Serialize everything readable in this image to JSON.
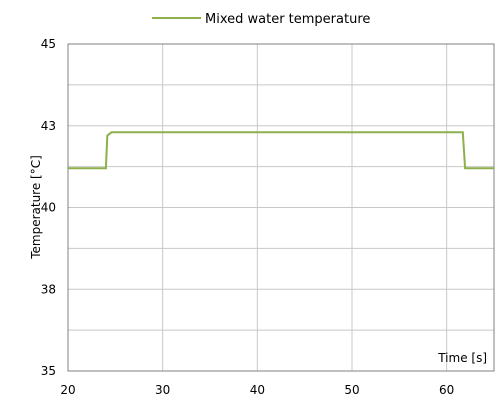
{
  "chart_data": {
    "type": "line",
    "title": "",
    "xlabel": "Time [s]",
    "ylabel": "Temperature [°C]",
    "xlim": [
      20,
      65
    ],
    "ylim": [
      35,
      45
    ],
    "x_ticks": [
      20,
      30,
      40,
      50,
      60
    ],
    "y_ticks": [
      35,
      38,
      40,
      43,
      45
    ],
    "y_tick_values": [
      35,
      37.5,
      40,
      42.5,
      45
    ],
    "grid": true,
    "legend_position": "top",
    "series": [
      {
        "name": "Mixed water temperature",
        "color": "#8db04a",
        "x": [
          20,
          24.0,
          24.15,
          24.6,
          61.7,
          61.95,
          65
        ],
        "y": [
          41.2,
          41.2,
          42.2,
          42.3,
          42.3,
          41.2,
          41.2
        ]
      }
    ]
  }
}
